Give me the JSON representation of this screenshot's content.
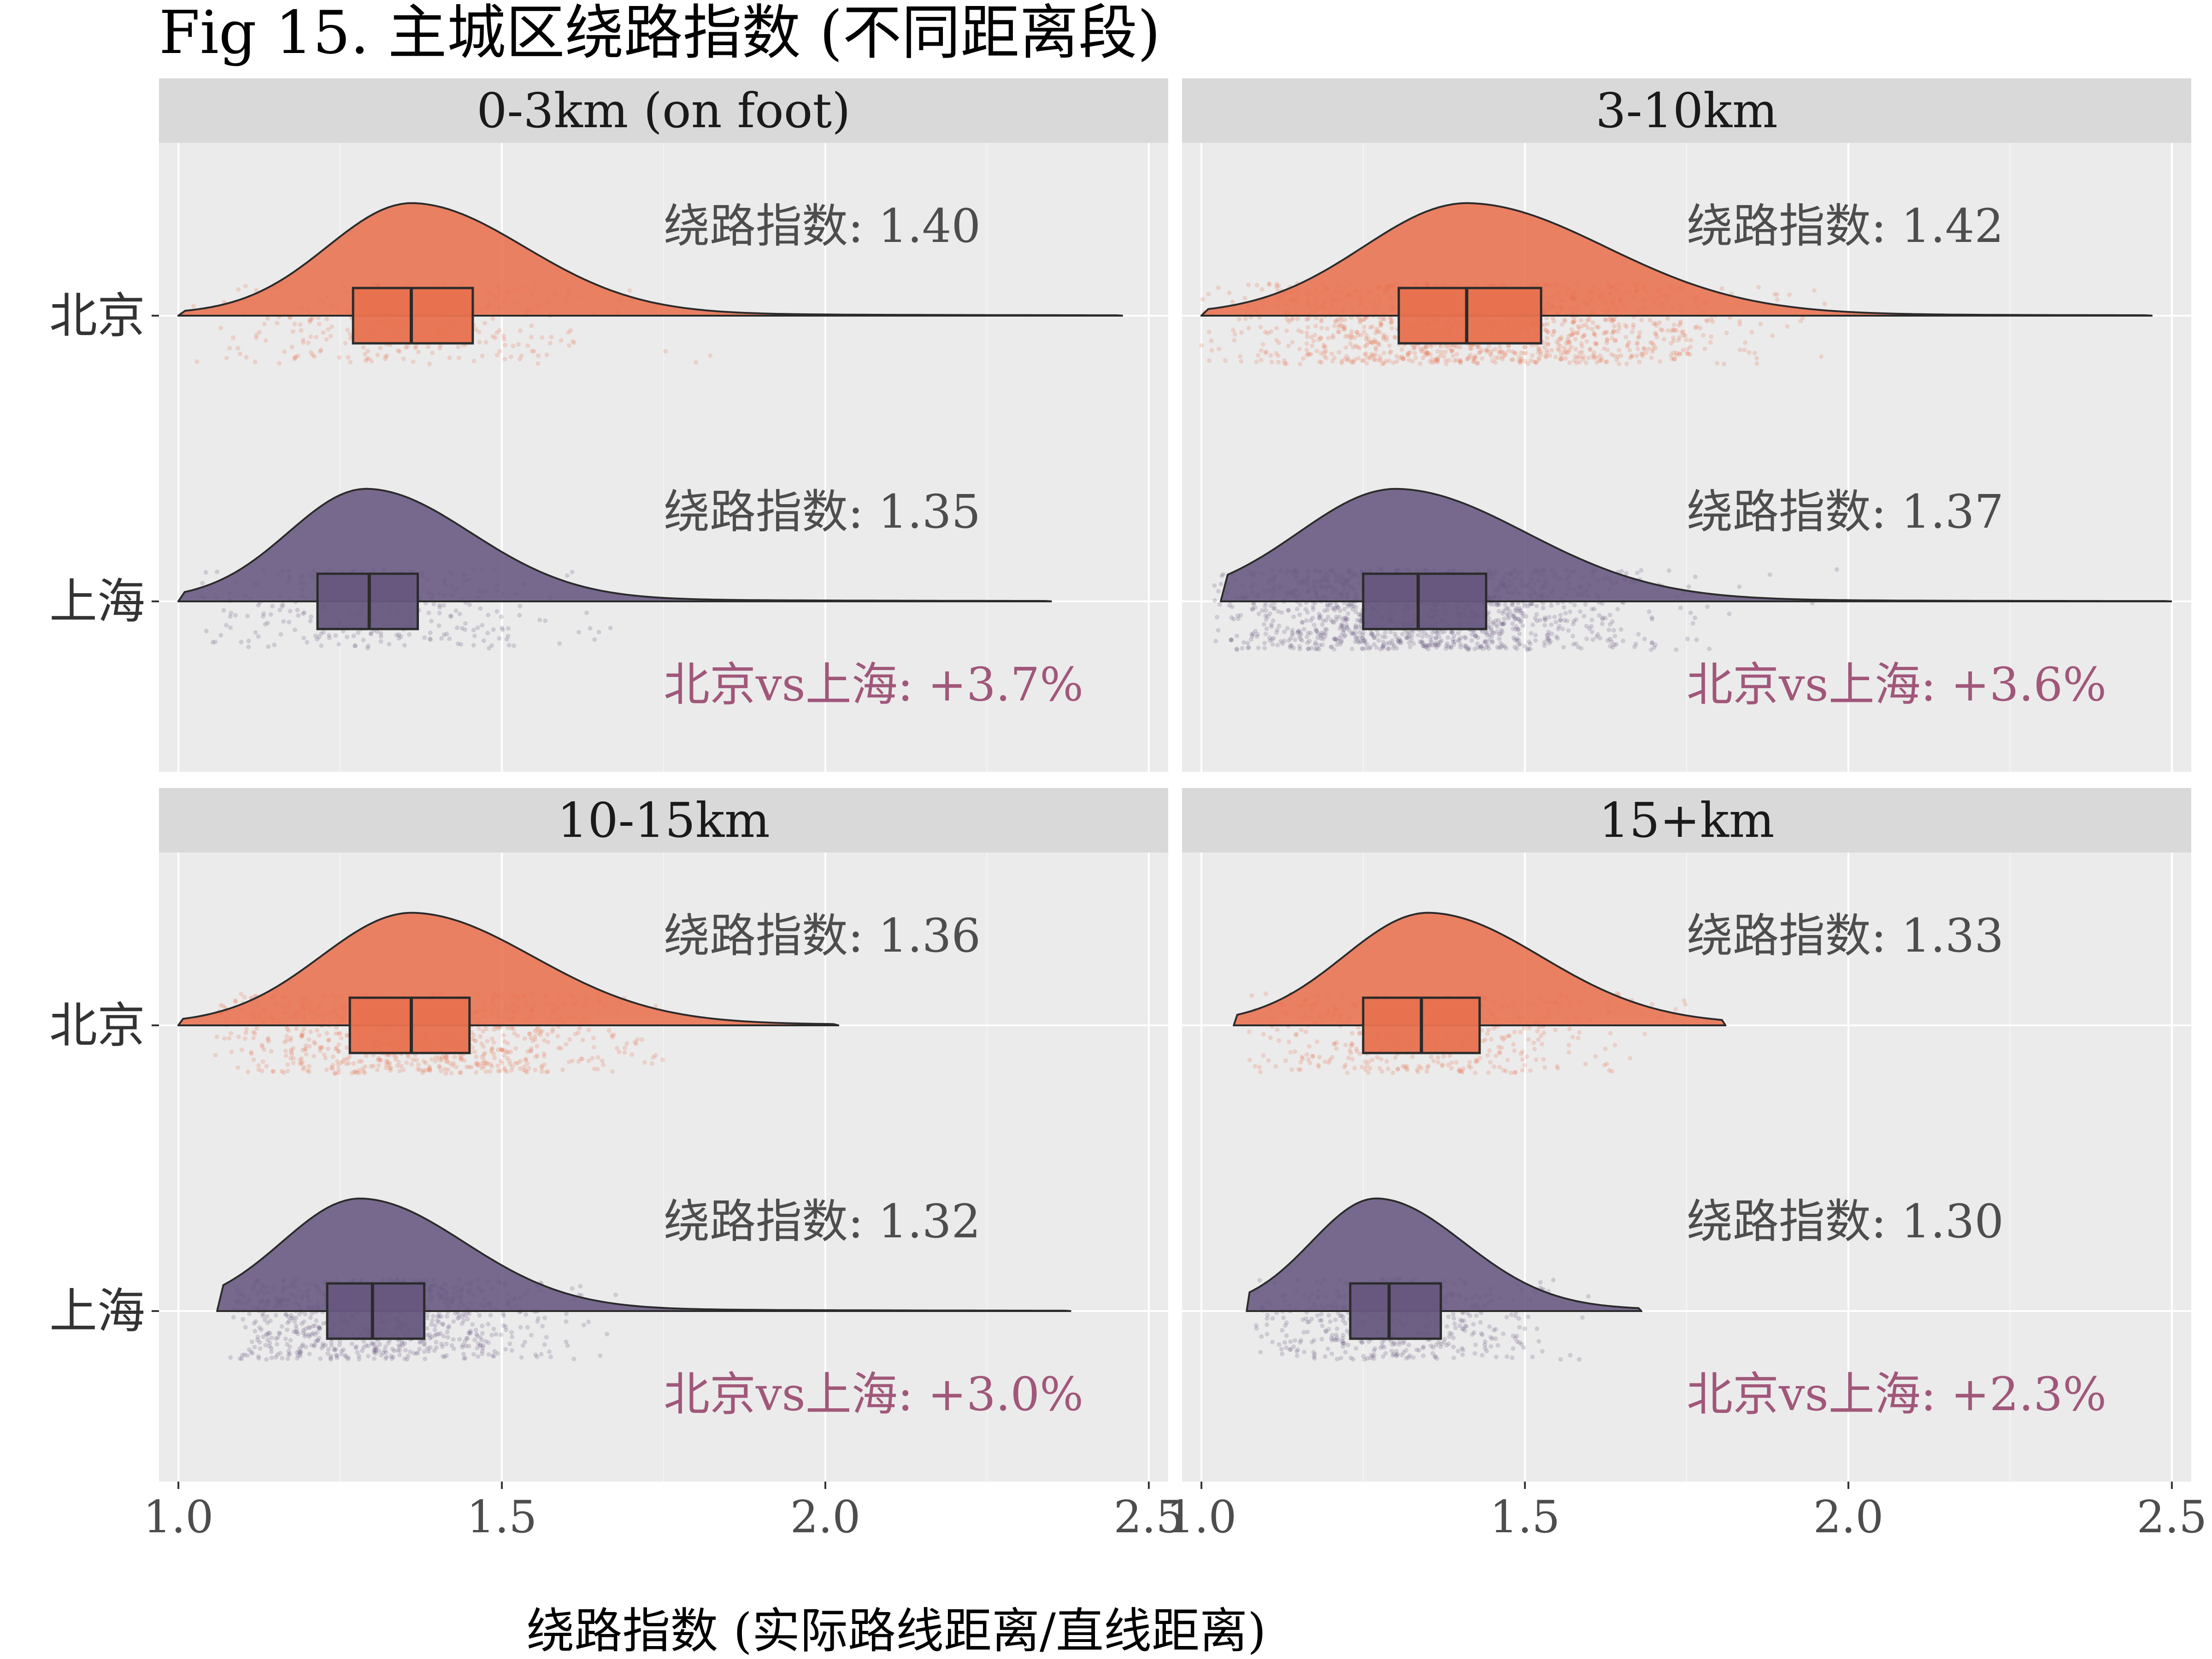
{
  "title": "Fig 15. 主城区绕路指数 (不同距离段)",
  "xlabel": "绕路指数 (实际路线距离/直线距离)",
  "colors": {
    "beijing": "#e8714f",
    "shanghai": "#675780",
    "diff": "#a0577a"
  },
  "chart_data": {
    "type": "raincloud",
    "x_axis": {
      "range": [
        0.97,
        2.53
      ],
      "ticks": [
        1.0,
        1.5,
        2.0,
        2.5
      ],
      "tick_labels": [
        "1.0",
        "1.5",
        "2.0",
        "2.5"
      ]
    },
    "y_categories": [
      "北京",
      "上海"
    ],
    "facets": [
      {
        "label": "0-3km (on foot)",
        "diff_label": "北京vs上海: +3.7%",
        "groups": [
          {
            "city": "北京",
            "annotation": "绕路指数: 1.40",
            "q1": 1.27,
            "median": 1.36,
            "q3": 1.455,
            "density_range": [
              1.0,
              2.46
            ],
            "peak": 1.36,
            "spread": 0.13,
            "points": 320,
            "point_range": [
              1.02,
              1.85
            ]
          },
          {
            "city": "上海",
            "annotation": "绕路指数: 1.35",
            "q1": 1.215,
            "median": 1.295,
            "q3": 1.37,
            "density_range": [
              1.0,
              2.35
            ],
            "peak": 1.29,
            "spread": 0.12,
            "points": 320,
            "point_range": [
              1.02,
              1.75
            ]
          }
        ]
      },
      {
        "label": "3-10km",
        "diff_label": "北京vs上海: +3.6%",
        "groups": [
          {
            "city": "北京",
            "annotation": "绕路指数: 1.42",
            "q1": 1.305,
            "median": 1.41,
            "q3": 1.525,
            "density_range": [
              1.0,
              2.47
            ],
            "peak": 1.41,
            "spread": 0.16,
            "points": 1400,
            "point_range": [
              1.0,
              2.0
            ]
          },
          {
            "city": "上海",
            "annotation": "绕路指数: 1.37",
            "q1": 1.25,
            "median": 1.335,
            "q3": 1.44,
            "density_range": [
              1.03,
              2.5
            ],
            "peak": 1.3,
            "spread": 0.15,
            "points": 1400,
            "point_range": [
              1.02,
              2.0
            ]
          }
        ]
      },
      {
        "label": "10-15km",
        "diff_label": "北京vs上海: +3.0%",
        "groups": [
          {
            "city": "北京",
            "annotation": "绕路指数: 1.36",
            "q1": 1.265,
            "median": 1.36,
            "q3": 1.45,
            "density_range": [
              1.0,
              2.02
            ],
            "peak": 1.36,
            "spread": 0.14,
            "points": 900,
            "point_range": [
              1.05,
              1.75
            ]
          },
          {
            "city": "上海",
            "annotation": "绕路指数: 1.32",
            "q1": 1.23,
            "median": 1.3,
            "q3": 1.38,
            "density_range": [
              1.06,
              2.38
            ],
            "peak": 1.28,
            "spread": 0.12,
            "points": 900,
            "point_range": [
              1.08,
              1.75
            ]
          }
        ]
      },
      {
        "label": "15+km",
        "diff_label": "北京vs上海: +2.3%",
        "groups": [
          {
            "city": "北京",
            "annotation": "绕路指数: 1.33",
            "q1": 1.25,
            "median": 1.34,
            "q3": 1.43,
            "density_range": [
              1.05,
              1.81
            ],
            "peak": 1.35,
            "spread": 0.13,
            "points": 500,
            "point_range": [
              1.07,
              1.75
            ]
          },
          {
            "city": "上海",
            "annotation": "绕路指数: 1.30",
            "q1": 1.23,
            "median": 1.29,
            "q3": 1.37,
            "density_range": [
              1.07,
              1.68
            ],
            "peak": 1.27,
            "spread": 0.1,
            "points": 500,
            "point_range": [
              1.08,
              1.6
            ]
          }
        ]
      }
    ]
  }
}
